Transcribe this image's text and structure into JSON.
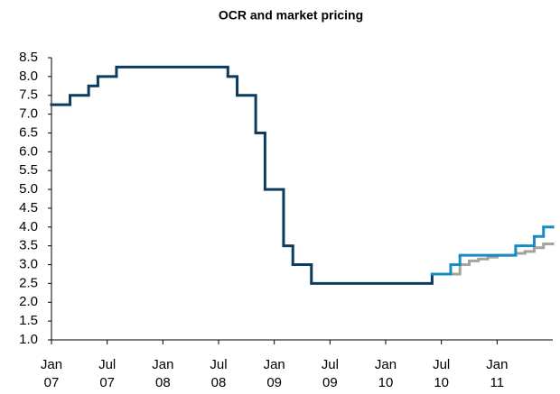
{
  "chart_data": {
    "type": "step",
    "title": "OCR and market pricing",
    "xlim": [
      "2007-01",
      "2011-07"
    ],
    "xticks": [
      {
        "value": "2007-01",
        "label": "Jan 07"
      },
      {
        "value": "2007-07",
        "label": "Jul 07"
      },
      {
        "value": "2008-01",
        "label": "Jan 08"
      },
      {
        "value": "2008-07",
        "label": "Jul 08"
      },
      {
        "value": "2009-01",
        "label": "Jan 09"
      },
      {
        "value": "2009-07",
        "label": "Jul 09"
      },
      {
        "value": "2010-01",
        "label": "Jan 10"
      },
      {
        "value": "2010-07",
        "label": "Jul 10"
      },
      {
        "value": "2011-01",
        "label": "Jan 11"
      }
    ],
    "ylim": [
      1.0,
      8.5
    ],
    "yticks": [
      {
        "value": 1,
        "label": "1.0"
      },
      1.5,
      {
        "value": 2,
        "label": "2.0"
      },
      2.5,
      {
        "value": 3,
        "label": "3.0"
      },
      3.5,
      {
        "value": 4,
        "label": "4.0"
      },
      4.5,
      {
        "value": 5,
        "label": "5.0"
      },
      5.5,
      {
        "value": 6,
        "label": "6.0"
      },
      6.5,
      {
        "value": 7,
        "label": "7.0"
      },
      7.5,
      {
        "value": 8,
        "label": "8.0"
      },
      8.5
    ],
    "grid": false,
    "series": [
      {
        "color": "#0b3c5d",
        "x": [
          "2007-01",
          "2007-03",
          "2007-05",
          "2007-06",
          "2007-08",
          "2008-08",
          "2008-09",
          "2008-11",
          "2008-12",
          "2009-02",
          "2009-03",
          "2009-05",
          "2010-06"
        ],
        "values": [
          7.25,
          7.5,
          7.75,
          8.0,
          8.25,
          8.0,
          7.5,
          6.5,
          5.0,
          3.5,
          3.0,
          2.5,
          2.75
        ]
      },
      {
        "color": "#a6a39c",
        "x": [
          "2010-06",
          "2010-09",
          "2010-10",
          "2010-11",
          "2010-12",
          "2011-01",
          "2011-03",
          "2011-04",
          "2011-05",
          "2011-06",
          "2011-07"
        ],
        "values": [
          2.75,
          3.0,
          3.1,
          3.15,
          3.2,
          3.25,
          3.3,
          3.35,
          3.45,
          3.55,
          3.55
        ]
      },
      {
        "color": "#1a8ac6",
        "x": [
          "2010-06",
          "2010-08",
          "2010-09",
          "2011-03",
          "2011-05",
          "2011-06",
          "2011-07"
        ],
        "values": [
          2.75,
          3.0,
          3.25,
          3.5,
          3.75,
          4.0,
          4.0
        ]
      }
    ]
  }
}
